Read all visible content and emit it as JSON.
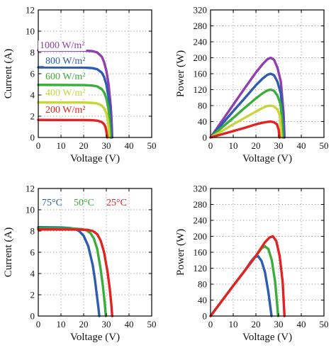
{
  "chart_data": [
    {
      "type": "line",
      "title": "",
      "xlabel": "Voltage (V)",
      "ylabel": "Current (A)",
      "xlim": [
        0,
        50
      ],
      "ylim": [
        0,
        12
      ],
      "xticks": [
        "0",
        "10",
        "20",
        "30",
        "40",
        "50"
      ],
      "yticks": [
        "0",
        "2",
        "4",
        "6",
        "8",
        "10",
        "12"
      ],
      "grid": true,
      "annotations": [
        {
          "text": "1000 W/m²",
          "color": "#8e3fb0"
        },
        {
          "text": "800 W/m²",
          "color": "#2f5bb0"
        },
        {
          "text": "600 W/m²",
          "color": "#3aae3a"
        },
        {
          "text": "400 W/m²",
          "color": "#c8d63a"
        },
        {
          "text": "200 W/m²",
          "color": "#e32222"
        }
      ],
      "series": [
        {
          "name": "1000 W/m²",
          "color": "#8e3fb0",
          "x": [
            0,
            20,
            24,
            26,
            28,
            29,
            30,
            31,
            32,
            32.4,
            32.6
          ],
          "y": [
            8.2,
            8.18,
            8.12,
            8.0,
            7.6,
            7.1,
            6.3,
            5.0,
            2.8,
            1.2,
            0
          ]
        },
        {
          "name": "800 W/m²",
          "color": "#2f5bb0",
          "x": [
            0,
            20,
            24,
            26,
            28,
            29,
            30,
            31,
            31.6,
            32.0,
            32.3
          ],
          "y": [
            6.6,
            6.58,
            6.52,
            6.42,
            6.1,
            5.7,
            5.0,
            3.8,
            2.6,
            1.0,
            0
          ]
        },
        {
          "name": "600 W/m²",
          "color": "#3aae3a",
          "x": [
            0,
            20,
            24,
            26,
            28,
            29,
            30,
            30.8,
            31.3,
            31.6,
            31.9
          ],
          "y": [
            4.95,
            4.93,
            4.88,
            4.8,
            4.55,
            4.25,
            3.7,
            2.9,
            2.0,
            1.0,
            0
          ]
        },
        {
          "name": "400 W/m²",
          "color": "#c8d63a",
          "x": [
            0,
            20,
            24,
            26,
            28,
            29,
            30,
            30.6,
            31.0,
            31.3
          ],
          "y": [
            3.3,
            3.29,
            3.25,
            3.2,
            3.0,
            2.75,
            2.3,
            1.7,
            1.0,
            0
          ]
        },
        {
          "name": "200 W/m²",
          "color": "#e32222",
          "x": [
            0,
            20,
            24,
            26,
            28,
            29,
            29.6,
            30.0,
            30.4
          ],
          "y": [
            1.65,
            1.64,
            1.62,
            1.58,
            1.45,
            1.25,
            1.0,
            0.6,
            0
          ]
        }
      ]
    },
    {
      "type": "line",
      "title": "",
      "xlabel": "Voltage (V)",
      "ylabel": "Power (W)",
      "xlim": [
        0,
        50
      ],
      "ylim": [
        0,
        320
      ],
      "xticks": [
        "0",
        "10",
        "20",
        "30",
        "40",
        "50"
      ],
      "yticks": [
        "0",
        "40",
        "80",
        "120",
        "160",
        "200",
        "240",
        "280",
        "320"
      ],
      "grid": true,
      "series": [
        {
          "name": "1000 W/m²",
          "color": "#8e3fb0",
          "x": [
            0,
            5,
            10,
            15,
            20,
            23,
            25,
            26.5,
            28,
            29.5,
            31,
            32.2,
            32.6
          ],
          "y": [
            0,
            41,
            82,
            123,
            163,
            184,
            196,
            200,
            195,
            175,
            140,
            60,
            0
          ]
        },
        {
          "name": "800 W/m²",
          "color": "#2f5bb0",
          "x": [
            0,
            5,
            10,
            15,
            20,
            23,
            25,
            26.5,
            28,
            29.5,
            31,
            32.0,
            32.3
          ],
          "y": [
            0,
            33,
            66,
            98,
            131,
            148,
            157,
            160,
            156,
            140,
            110,
            45,
            0
          ]
        },
        {
          "name": "600 W/m²",
          "color": "#3aae3a",
          "x": [
            0,
            5,
            10,
            15,
            20,
            23,
            25,
            26.5,
            28,
            29.5,
            30.8,
            31.6,
            31.9
          ],
          "y": [
            0,
            25,
            49,
            74,
            98,
            111,
            118,
            120,
            117,
            105,
            85,
            40,
            0
          ]
        },
        {
          "name": "400 W/m²",
          "color": "#c8d63a",
          "x": [
            0,
            5,
            10,
            15,
            20,
            23,
            25,
            26.5,
            28,
            29.5,
            30.6,
            31.3
          ],
          "y": [
            0,
            16,
            33,
            49,
            65,
            74,
            79,
            80,
            78,
            70,
            55,
            0
          ]
        },
        {
          "name": "200 W/m²",
          "color": "#e32222",
          "x": [
            0,
            5,
            10,
            15,
            20,
            23,
            25,
            26.5,
            28,
            29.3,
            30.0,
            30.4
          ],
          "y": [
            0,
            8,
            16,
            24,
            33,
            37,
            39,
            40,
            38,
            33,
            20,
            0
          ]
        }
      ]
    },
    {
      "type": "line",
      "title": "",
      "xlabel": "Voltage (V)",
      "ylabel": "Current (A)",
      "xlim": [
        0,
        50
      ],
      "ylim": [
        0,
        12
      ],
      "xticks": [
        "0",
        "10",
        "20",
        "30",
        "40",
        "50"
      ],
      "yticks": [
        "0",
        "2",
        "4",
        "6",
        "8",
        "10",
        "12"
      ],
      "grid": true,
      "annotations": [
        {
          "text": "75°C",
          "color": "#2f5bb0"
        },
        {
          "text": "50°C",
          "color": "#3aae3a"
        },
        {
          "text": "25°C",
          "color": "#e32222"
        }
      ],
      "series": [
        {
          "name": "75°C",
          "color": "#2f5bb0",
          "x": [
            0,
            10,
            14,
            16,
            18,
            20,
            22,
            24,
            25,
            25.8,
            26.5,
            26.9
          ],
          "y": [
            8.35,
            8.33,
            8.28,
            8.2,
            8.0,
            7.55,
            6.6,
            4.8,
            3.4,
            2.0,
            0.8,
            0
          ]
        },
        {
          "name": "50°C",
          "color": "#3aae3a",
          "x": [
            0,
            15,
            19,
            21,
            23,
            24.5,
            26,
            27.5,
            28.5,
            29.3,
            29.8
          ],
          "y": [
            8.25,
            8.24,
            8.18,
            8.08,
            7.8,
            7.3,
            6.3,
            4.4,
            2.8,
            1.2,
            0
          ]
        },
        {
          "name": "25°C",
          "color": "#e32222",
          "x": [
            0,
            18,
            22,
            24,
            26,
            27.5,
            29,
            30.5,
            31.5,
            32.2,
            32.6
          ],
          "y": [
            8.15,
            8.14,
            8.1,
            8.0,
            7.7,
            7.1,
            6.0,
            4.2,
            2.6,
            1.1,
            0
          ]
        }
      ]
    },
    {
      "type": "line",
      "title": "",
      "xlabel": "Voltage (V)",
      "ylabel": "Power (W)",
      "xlim": [
        0,
        50
      ],
      "ylim": [
        0,
        320
      ],
      "xticks": [
        "0",
        "10",
        "20",
        "30",
        "40",
        "50"
      ],
      "yticks": [
        "0",
        "40",
        "80",
        "120",
        "160",
        "200",
        "240",
        "280",
        "320"
      ],
      "grid": true,
      "series": [
        {
          "name": "75°C",
          "color": "#2f5bb0",
          "x": [
            0,
            5,
            10,
            15,
            18,
            19.5,
            21,
            22.5,
            24,
            25.5,
            26.9
          ],
          "y": [
            0,
            38,
            76,
            113,
            138,
            148,
            150,
            138,
            110,
            60,
            0
          ]
        },
        {
          "name": "50°C",
          "color": "#3aae3a",
          "x": [
            0,
            5,
            10,
            15,
            20,
            22.5,
            24,
            25.5,
            27,
            28.5,
            29.8
          ],
          "y": [
            0,
            38,
            76,
            113,
            150,
            170,
            175,
            168,
            140,
            85,
            0
          ]
        },
        {
          "name": "25°C",
          "color": "#e32222",
          "x": [
            0,
            5,
            10,
            15,
            20,
            24,
            26,
            27.5,
            29,
            30.5,
            31.8,
            32.6
          ],
          "y": [
            0,
            38,
            76,
            113,
            151,
            185,
            197,
            200,
            188,
            150,
            85,
            0
          ]
        }
      ]
    }
  ]
}
